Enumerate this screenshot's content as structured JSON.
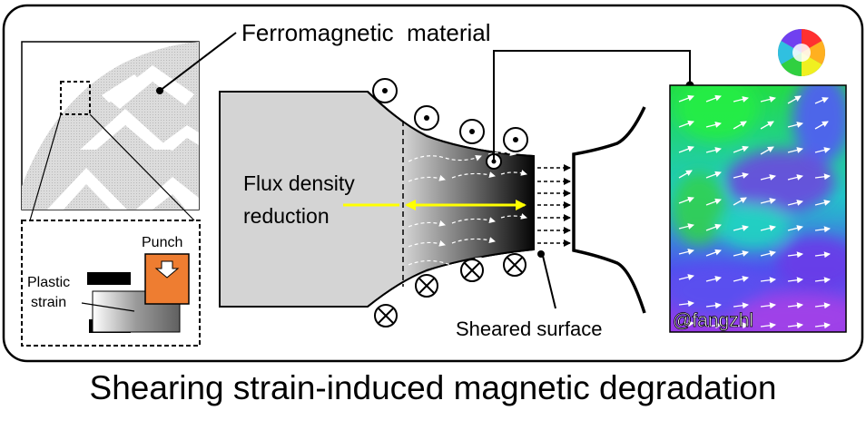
{
  "labels": {
    "ferromagnetic": "Ferromagnetic  material",
    "punch": "Punch",
    "plastic_line1": "Plastic",
    "plastic_line2": "strain",
    "flux_line1": "Flux density",
    "flux_line2": "reduction",
    "sheared_surface": "Sheared surface",
    "watermark": "@fangzhl"
  },
  "title": "Shearing strain-induced magnetic degradation",
  "colors": {
    "punch": "#ee7d31",
    "arrow_yellow": "#ffff00",
    "steel_gray": "#d4d4d4",
    "map_green": "#22dd44",
    "map_cyan": "#20c8c8",
    "map_blue": "#5050ee",
    "map_purple": "#9a3ae8"
  },
  "icons": {
    "out_of_page": "dot-in-circle-icon",
    "into_page": "cross-in-circle-icon",
    "color_wheel": "color-wheel-icon"
  }
}
